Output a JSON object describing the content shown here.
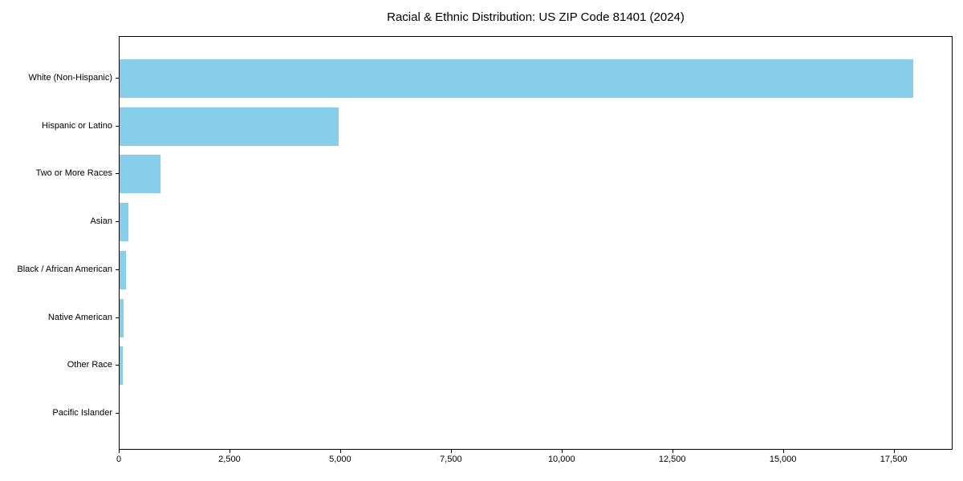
{
  "chart_data": {
    "type": "bar",
    "orientation": "horizontal",
    "title": "Racial & Ethnic Distribution: US ZIP Code 81401 (2024)",
    "categories": [
      "White (Non-Hispanic)",
      "Hispanic or Latino",
      "Two or More Races",
      "Asian",
      "Black / African American",
      "Native American",
      "Other Race",
      "Pacific Islander"
    ],
    "values": [
      17930,
      4950,
      920,
      200,
      145,
      85,
      80,
      0
    ],
    "xlabel": "",
    "ylabel": "",
    "xlim": [
      0,
      18830
    ],
    "xticks": [
      0,
      2500,
      5000,
      7500,
      10000,
      12500,
      15000,
      17500
    ],
    "xtick_labels": [
      "0",
      "2,500",
      "5,000",
      "7,500",
      "10,000",
      "12,500",
      "15,000",
      "17,500"
    ],
    "grid": false,
    "legend_position": "none",
    "bar_color": "#87CEEB",
    "axis_color": "#000000",
    "text_color": "#000000",
    "background_color": "#FFFFFF"
  }
}
